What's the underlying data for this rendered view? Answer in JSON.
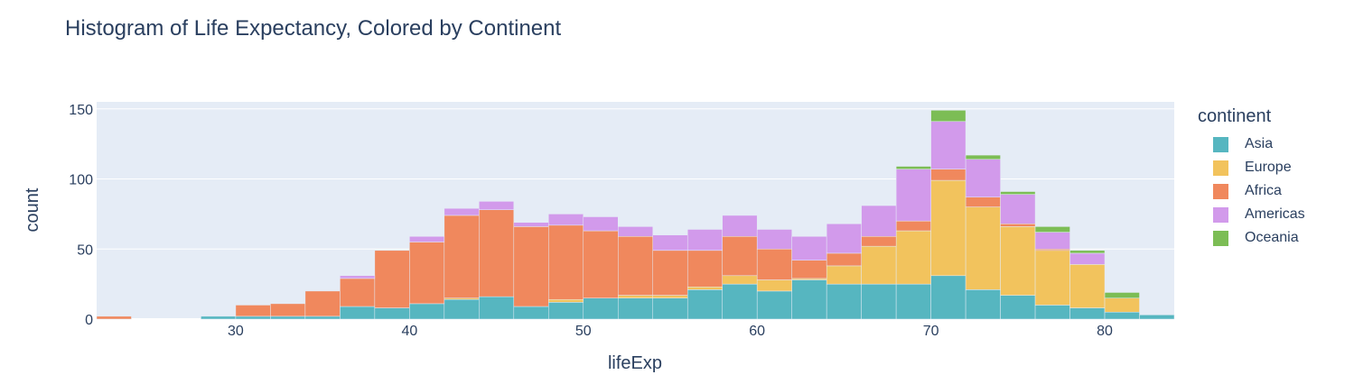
{
  "title": "Histogram of Life Expectancy, Colored by Continent",
  "chart_data": {
    "type": "histogram",
    "barmode": "stack",
    "title": "Histogram of Life Expectancy, Colored by Continent",
    "xlabel": "lifeExp",
    "ylabel": "count",
    "xlim": [
      22,
      84
    ],
    "ylim": [
      0,
      155
    ],
    "x_ticks": [
      30,
      40,
      50,
      60,
      70,
      80
    ],
    "y_ticks": [
      0,
      50,
      100,
      150
    ],
    "bin_width": 2,
    "bin_starts": [
      22,
      24,
      26,
      28,
      30,
      32,
      34,
      36,
      38,
      40,
      42,
      44,
      46,
      48,
      50,
      52,
      54,
      56,
      58,
      60,
      62,
      64,
      66,
      68,
      70,
      72,
      74,
      76,
      78,
      80,
      82
    ],
    "grid": true,
    "legend_position": "right",
    "legend_title": "continent",
    "series": [
      {
        "name": "Asia",
        "color": "#56b6c0",
        "values": [
          0,
          0,
          0,
          2,
          2,
          2,
          2,
          9,
          8,
          11,
          14,
          16,
          9,
          12,
          15,
          15,
          15,
          21,
          25,
          20,
          28,
          25,
          25,
          25,
          31,
          21,
          17,
          10,
          8,
          5,
          3
        ]
      },
      {
        "name": "Europe",
        "color": "#f2c35d",
        "values": [
          0,
          0,
          0,
          0,
          0,
          0,
          0,
          0,
          0,
          0,
          1,
          0,
          0,
          2,
          0,
          2,
          2,
          2,
          6,
          8,
          1,
          13,
          27,
          38,
          68,
          59,
          49,
          39,
          31,
          10,
          0
        ]
      },
      {
        "name": "Africa",
        "color": "#f0885d",
        "values": [
          2,
          0,
          0,
          0,
          8,
          9,
          18,
          20,
          41,
          44,
          59,
          62,
          57,
          53,
          48,
          42,
          32,
          26,
          28,
          22,
          13,
          9,
          7,
          7,
          8,
          7,
          2,
          1,
          0,
          0,
          0
        ]
      },
      {
        "name": "Americas",
        "color": "#d29aeb",
        "values": [
          0,
          0,
          0,
          0,
          0,
          0,
          0,
          2,
          0,
          4,
          5,
          6,
          3,
          8,
          10,
          7,
          11,
          15,
          15,
          14,
          17,
          21,
          22,
          37,
          34,
          27,
          21,
          12,
          8,
          0,
          0
        ]
      },
      {
        "name": "Oceania",
        "color": "#7cbd55",
        "values": [
          0,
          0,
          0,
          0,
          0,
          0,
          0,
          0,
          0,
          0,
          0,
          0,
          0,
          0,
          0,
          0,
          0,
          0,
          0,
          0,
          0,
          0,
          0,
          2,
          8,
          3,
          2,
          4,
          2,
          4,
          0
        ]
      }
    ]
  }
}
